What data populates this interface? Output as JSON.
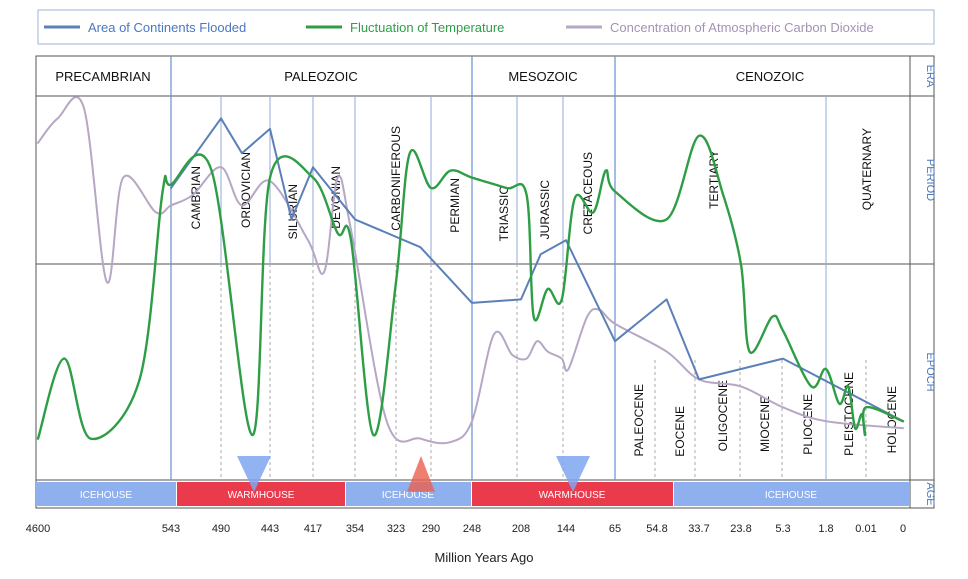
{
  "chart_data": {
    "type": "line",
    "title": "",
    "xlabel": "Million Years Ago",
    "ylabel": "",
    "legend": {
      "placement": "top"
    },
    "grid": true,
    "x_ticks": [
      "4600",
      "543",
      "490",
      "443",
      "417",
      "354",
      "323",
      "290",
      "248",
      "208",
      "144",
      "65",
      "54.8",
      "33.7",
      "23.8",
      "5.3",
      "1.8",
      "0.01",
      "0"
    ],
    "row_labels": [
      "ERA",
      "PERIOD",
      "EPOCH",
      "AGE"
    ],
    "eras": [
      "PRECAMBRIAN",
      "PALEOZOIC",
      "MESOZOIC",
      "CENOZOIC"
    ],
    "periods": [
      "CAMBRIAN",
      "ORDOVICIAN",
      "SILURIAN",
      "DEVONIAN",
      "CARBONIFEROUS",
      "PERMIAN",
      "TRIASSIC",
      "JURASSIC",
      "CRETACEOUS",
      "TERTIARY",
      "QUATERNARY"
    ],
    "epochs": [
      "PALEOCENE",
      "EOCENE",
      "OLIGOCENE",
      "MIOCENE",
      "PLIOCENE",
      "PLEISTOCENE",
      "HOLOCENE"
    ],
    "age_bands": [
      {
        "label": "ICEHOUSE",
        "color": "#8fb0ee"
      },
      {
        "label": "WARMHOUSE",
        "color": "#ea3b4c"
      },
      {
        "label": "ICEHOUSE",
        "color": "#8fb0ee"
      },
      {
        "label": "WARMHOUSE",
        "color": "#ea3b4c"
      },
      {
        "label": "ICEHOUSE",
        "color": "#8fb0ee"
      }
    ],
    "series": [
      {
        "name": "Area of Continents Flooded",
        "color": "#5b80b8",
        "x": [
          543,
          490,
          470,
          443,
          430,
          417,
          354,
          300,
          248,
          208,
          180,
          144,
          65,
          50,
          33.7,
          23.8,
          5.3,
          0
        ],
        "y": [
          0.77,
          0.97,
          0.87,
          0.94,
          0.68,
          0.83,
          0.68,
          0.6,
          0.44,
          0.45,
          0.58,
          0.62,
          0.33,
          0.45,
          0.22,
          0.25,
          0.28,
          0.1
        ]
      },
      {
        "name": "Fluctuation of Temperature",
        "color": "#2e9e46",
        "x": [
          4600,
          3800,
          3000,
          1500,
          800,
          543,
          500,
          460,
          443,
          417,
          380,
          360,
          340,
          323,
          310,
          290,
          270,
          248,
          220,
          200,
          190,
          170,
          150,
          130,
          100,
          80,
          65,
          50,
          33.7,
          28,
          23.8,
          20,
          10,
          5.3,
          3,
          1.8,
          1.2,
          0.8,
          0.5,
          0.2,
          0.05,
          0.01,
          0
        ],
        "y": [
          0.05,
          0.28,
          0.05,
          0.22,
          0.76,
          0.78,
          0.82,
          0.06,
          0.8,
          0.8,
          0.64,
          0.62,
          0.06,
          0.5,
          0.87,
          0.77,
          0.82,
          0.8,
          0.77,
          0.75,
          0.4,
          0.48,
          0.45,
          0.74,
          0.7,
          0.82,
          0.76,
          0.68,
          0.92,
          0.75,
          0.55,
          0.3,
          0.4,
          0.36,
          0.2,
          0.25,
          0.15,
          0.2,
          0.08,
          0.12,
          0.06,
          0.14,
          0.1
        ]
      },
      {
        "name": "Concentration of Atmospheric Carbon Dioxide",
        "color": "#b6a7c4",
        "x": [
          4600,
          4000,
          3200,
          2500,
          2000,
          1000,
          543,
          520,
          490,
          470,
          443,
          420,
          400,
          380,
          360,
          330,
          300,
          270,
          248,
          230,
          215,
          200,
          185,
          170,
          150,
          140,
          110,
          90,
          65,
          50,
          33.7,
          23.8,
          5.3,
          1.8,
          0
        ],
        "y": [
          0.9,
          0.97,
          1.0,
          0.5,
          0.8,
          0.7,
          0.72,
          0.75,
          0.83,
          0.72,
          0.79,
          0.62,
          0.53,
          0.8,
          0.65,
          0.1,
          0.05,
          0.04,
          0.1,
          0.35,
          0.29,
          0.28,
          0.33,
          0.3,
          0.28,
          0.25,
          0.4,
          0.42,
          0.38,
          0.3,
          0.22,
          0.2,
          0.14,
          0.1,
          0.08
        ]
      }
    ]
  }
}
